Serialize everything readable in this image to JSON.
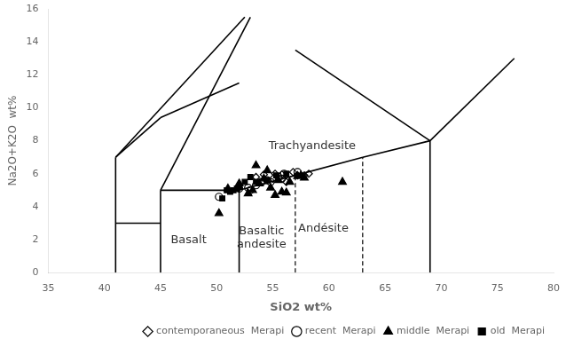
{
  "chart_data": {
    "type": "scatter",
    "xlabel": "SiO2 wt%",
    "ylabel": "Na2O+K2O  wt%",
    "xlim": [
      35,
      80
    ],
    "ylim": [
      0,
      16
    ],
    "xticks": [
      35,
      40,
      45,
      50,
      55,
      60,
      65,
      70,
      75,
      80
    ],
    "yticks": [
      0,
      2,
      4,
      6,
      8,
      10,
      12,
      14,
      16
    ],
    "grid": false,
    "legend": "lower right",
    "series": [
      {
        "type": "line",
        "color": "black",
        "line_style": "solid",
        "values": [
          [
            41,
            0
          ],
          [
            41,
            7
          ],
          null,
          [
            41,
            3
          ],
          [
            45,
            3
          ],
          null,
          [
            45,
            0
          ],
          [
            45,
            5
          ],
          null,
          [
            45,
            5
          ],
          [
            52,
            5
          ],
          null,
          [
            52,
            0
          ],
          [
            52,
            5
          ],
          null,
          [
            69,
            0
          ],
          [
            69,
            8
          ],
          null,
          [
            41,
            7
          ],
          [
            52.5,
            15.5
          ],
          null,
          [
            45,
            5
          ],
          [
            53.0,
            15.5
          ],
          null,
          [
            52,
            5
          ],
          [
            57,
            5.9
          ],
          null,
          [
            57,
            5.9
          ],
          [
            63,
            7
          ],
          null,
          [
            63,
            7
          ],
          [
            69,
            8
          ],
          null,
          [
            69,
            8
          ],
          [
            76.5,
            13
          ],
          null,
          [
            57,
            13.5
          ],
          [
            69,
            8
          ],
          null,
          [
            41,
            7
          ],
          [
            45,
            9.4
          ],
          null,
          [
            45,
            9.4
          ],
          [
            52,
            11.5
          ]
        ]
      },
      {
        "type": "line",
        "color": "black",
        "line_style": "dashed",
        "values": [
          [
            57,
            0
          ],
          [
            57,
            5.9
          ],
          null,
          [
            63,
            0
          ],
          [
            63,
            7
          ]
        ]
      },
      {
        "name": "contemporaneous  Merapi",
        "type": "scatter",
        "color": "black",
        "marker": "diamond_open",
        "values": [
          [
            53.5,
            5.8
          ],
          [
            54.2,
            5.95
          ],
          [
            55.2,
            6.0
          ],
          [
            55.8,
            5.95
          ],
          [
            56.8,
            6.1
          ],
          [
            57.2,
            5.9
          ],
          [
            57.8,
            5.9
          ],
          [
            58.2,
            6.0
          ],
          [
            56.2,
            5.5
          ],
          [
            55.0,
            5.7
          ]
        ]
      },
      {
        "name": "recent  Merapi",
        "type": "scatter",
        "color": "black",
        "marker": "circle_open",
        "values": [
          [
            50.2,
            4.6
          ],
          [
            52.0,
            5.1
          ],
          [
            52.8,
            5.15
          ],
          [
            53.5,
            5.3
          ],
          [
            54.0,
            5.5
          ],
          [
            54.5,
            5.6
          ],
          [
            55.5,
            5.8
          ],
          [
            56.0,
            6.0
          ],
          [
            57.2,
            6.1
          ],
          [
            53.0,
            5.0
          ],
          [
            54.8,
            5.5
          ],
          [
            55.8,
            5.7
          ]
        ]
      },
      {
        "name": "middle  Merapi",
        "type": "scatter",
        "color": "black",
        "marker": "triangle",
        "values": [
          [
            50.2,
            3.6
          ],
          [
            51.0,
            5.1
          ],
          [
            52.0,
            5.4
          ],
          [
            52.8,
            4.8
          ],
          [
            53.2,
            5.0
          ],
          [
            53.8,
            5.4
          ],
          [
            54.2,
            5.7
          ],
          [
            54.8,
            5.15
          ],
          [
            55.2,
            4.7
          ],
          [
            55.8,
            4.9
          ],
          [
            56.2,
            4.85
          ],
          [
            57.2,
            5.85
          ],
          [
            57.8,
            5.75
          ],
          [
            61.2,
            5.5
          ],
          [
            53.5,
            6.5
          ],
          [
            54.5,
            6.2
          ],
          [
            55.5,
            5.6
          ],
          [
            56.5,
            5.5
          ],
          [
            57.5,
            5.9
          ]
        ]
      },
      {
        "name": "old  Merapi",
        "type": "scatter",
        "color": "black",
        "marker": "square",
        "values": [
          [
            50.5,
            4.5
          ],
          [
            50.9,
            5.0
          ],
          [
            51.5,
            5.0
          ],
          [
            51.8,
            5.1
          ],
          [
            52.5,
            5.5
          ],
          [
            53.0,
            5.8
          ],
          [
            53.5,
            5.5
          ],
          [
            54.5,
            5.6
          ],
          [
            55.3,
            5.9
          ],
          [
            56.2,
            6.0
          ],
          [
            51.2,
            4.9
          ],
          [
            52.0,
            5.2
          ]
        ]
      }
    ],
    "annotations": [
      {
        "text": "Basalt",
        "x": 47.5,
        "y": 1.8
      },
      {
        "text": "Basaltic\nandesite",
        "x": 54.0,
        "y": 1.5
      },
      {
        "text": "Andésite",
        "x": 59.5,
        "y": 2.5
      },
      {
        "text": "Trachyandesite",
        "x": 58.5,
        "y": 7.5
      }
    ]
  }
}
